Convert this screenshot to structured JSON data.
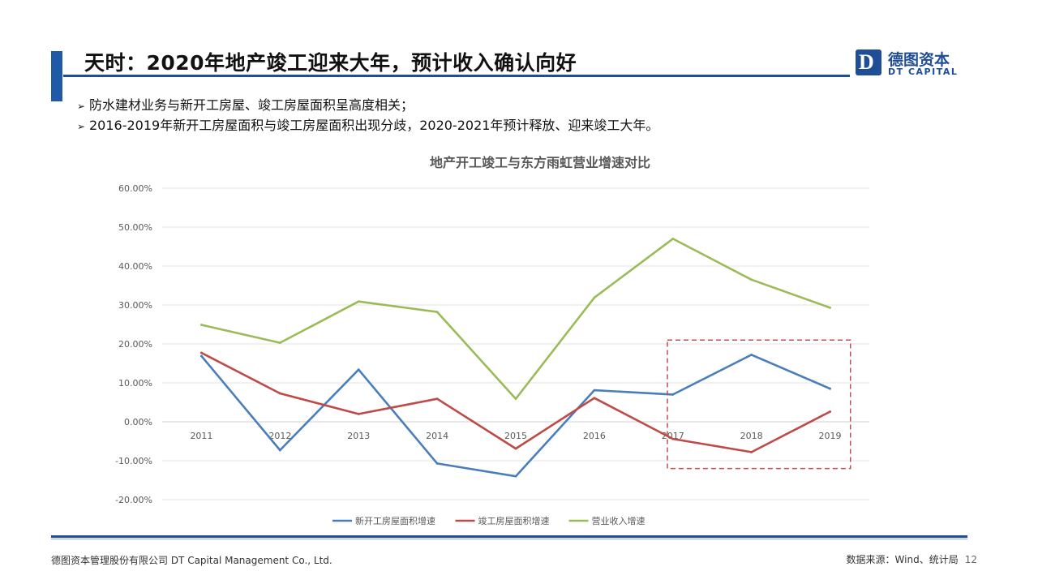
{
  "header": {
    "title": "天时：2020年地产竣工迎来大年，预计收入确认向好",
    "logo_cn": "德图资本",
    "logo_en": "DT CAPITAL",
    "logo_mark": "D",
    "brand_color": "#1f4e96"
  },
  "bullets": [
    "防水建材业务与新开工房屋、竣工房屋面积呈高度相关；",
    "2016-2019年新开工房屋面积与竣工房屋面积出现分歧，2020-2021年预计释放、迎来竣工大年。"
  ],
  "bullet_marker": "➢",
  "chart_data": {
    "type": "line",
    "title": "地产开工竣工与东方雨虹营业增速对比",
    "categories": [
      "2011",
      "2012",
      "2013",
      "2014",
      "2015",
      "2016",
      "2017",
      "2018",
      "2019"
    ],
    "ylim": [
      -20,
      60
    ],
    "y_ticks": [
      "60.00%",
      "50.00%",
      "40.00%",
      "30.00%",
      "20.00%",
      "10.00%",
      "0.00%",
      "-10.00%",
      "-20.00%"
    ],
    "y_tick_values": [
      60,
      50,
      40,
      30,
      20,
      10,
      0,
      -10,
      -20
    ],
    "grid": true,
    "legend_position": "bottom",
    "series": [
      {
        "name": "新开工房屋面积增速",
        "color": "#4a7ebb",
        "values": [
          16.9,
          -7.3,
          13.4,
          -10.7,
          -14.0,
          8.1,
          7.0,
          17.2,
          8.5
        ]
      },
      {
        "name": "竣工房屋面积增速",
        "color": "#be4b48",
        "values": [
          17.7,
          7.3,
          2.0,
          5.9,
          -6.9,
          6.1,
          -4.4,
          -7.8,
          2.6
        ]
      },
      {
        "name": "营业收入增速",
        "color": "#9bbb59",
        "values": [
          24.9,
          20.3,
          30.9,
          28.2,
          5.9,
          31.9,
          47.0,
          36.5,
          29.3
        ]
      }
    ],
    "highlight": {
      "from": "2017",
      "to": "2019",
      "ylim": [
        -12,
        21
      ],
      "color": "#c0504d"
    }
  },
  "footer": {
    "company": "德图资本管理股份有限公司  DT Capital Management  Co., Ltd.",
    "source": "数据来源：Wind、统计局",
    "page": "12"
  }
}
